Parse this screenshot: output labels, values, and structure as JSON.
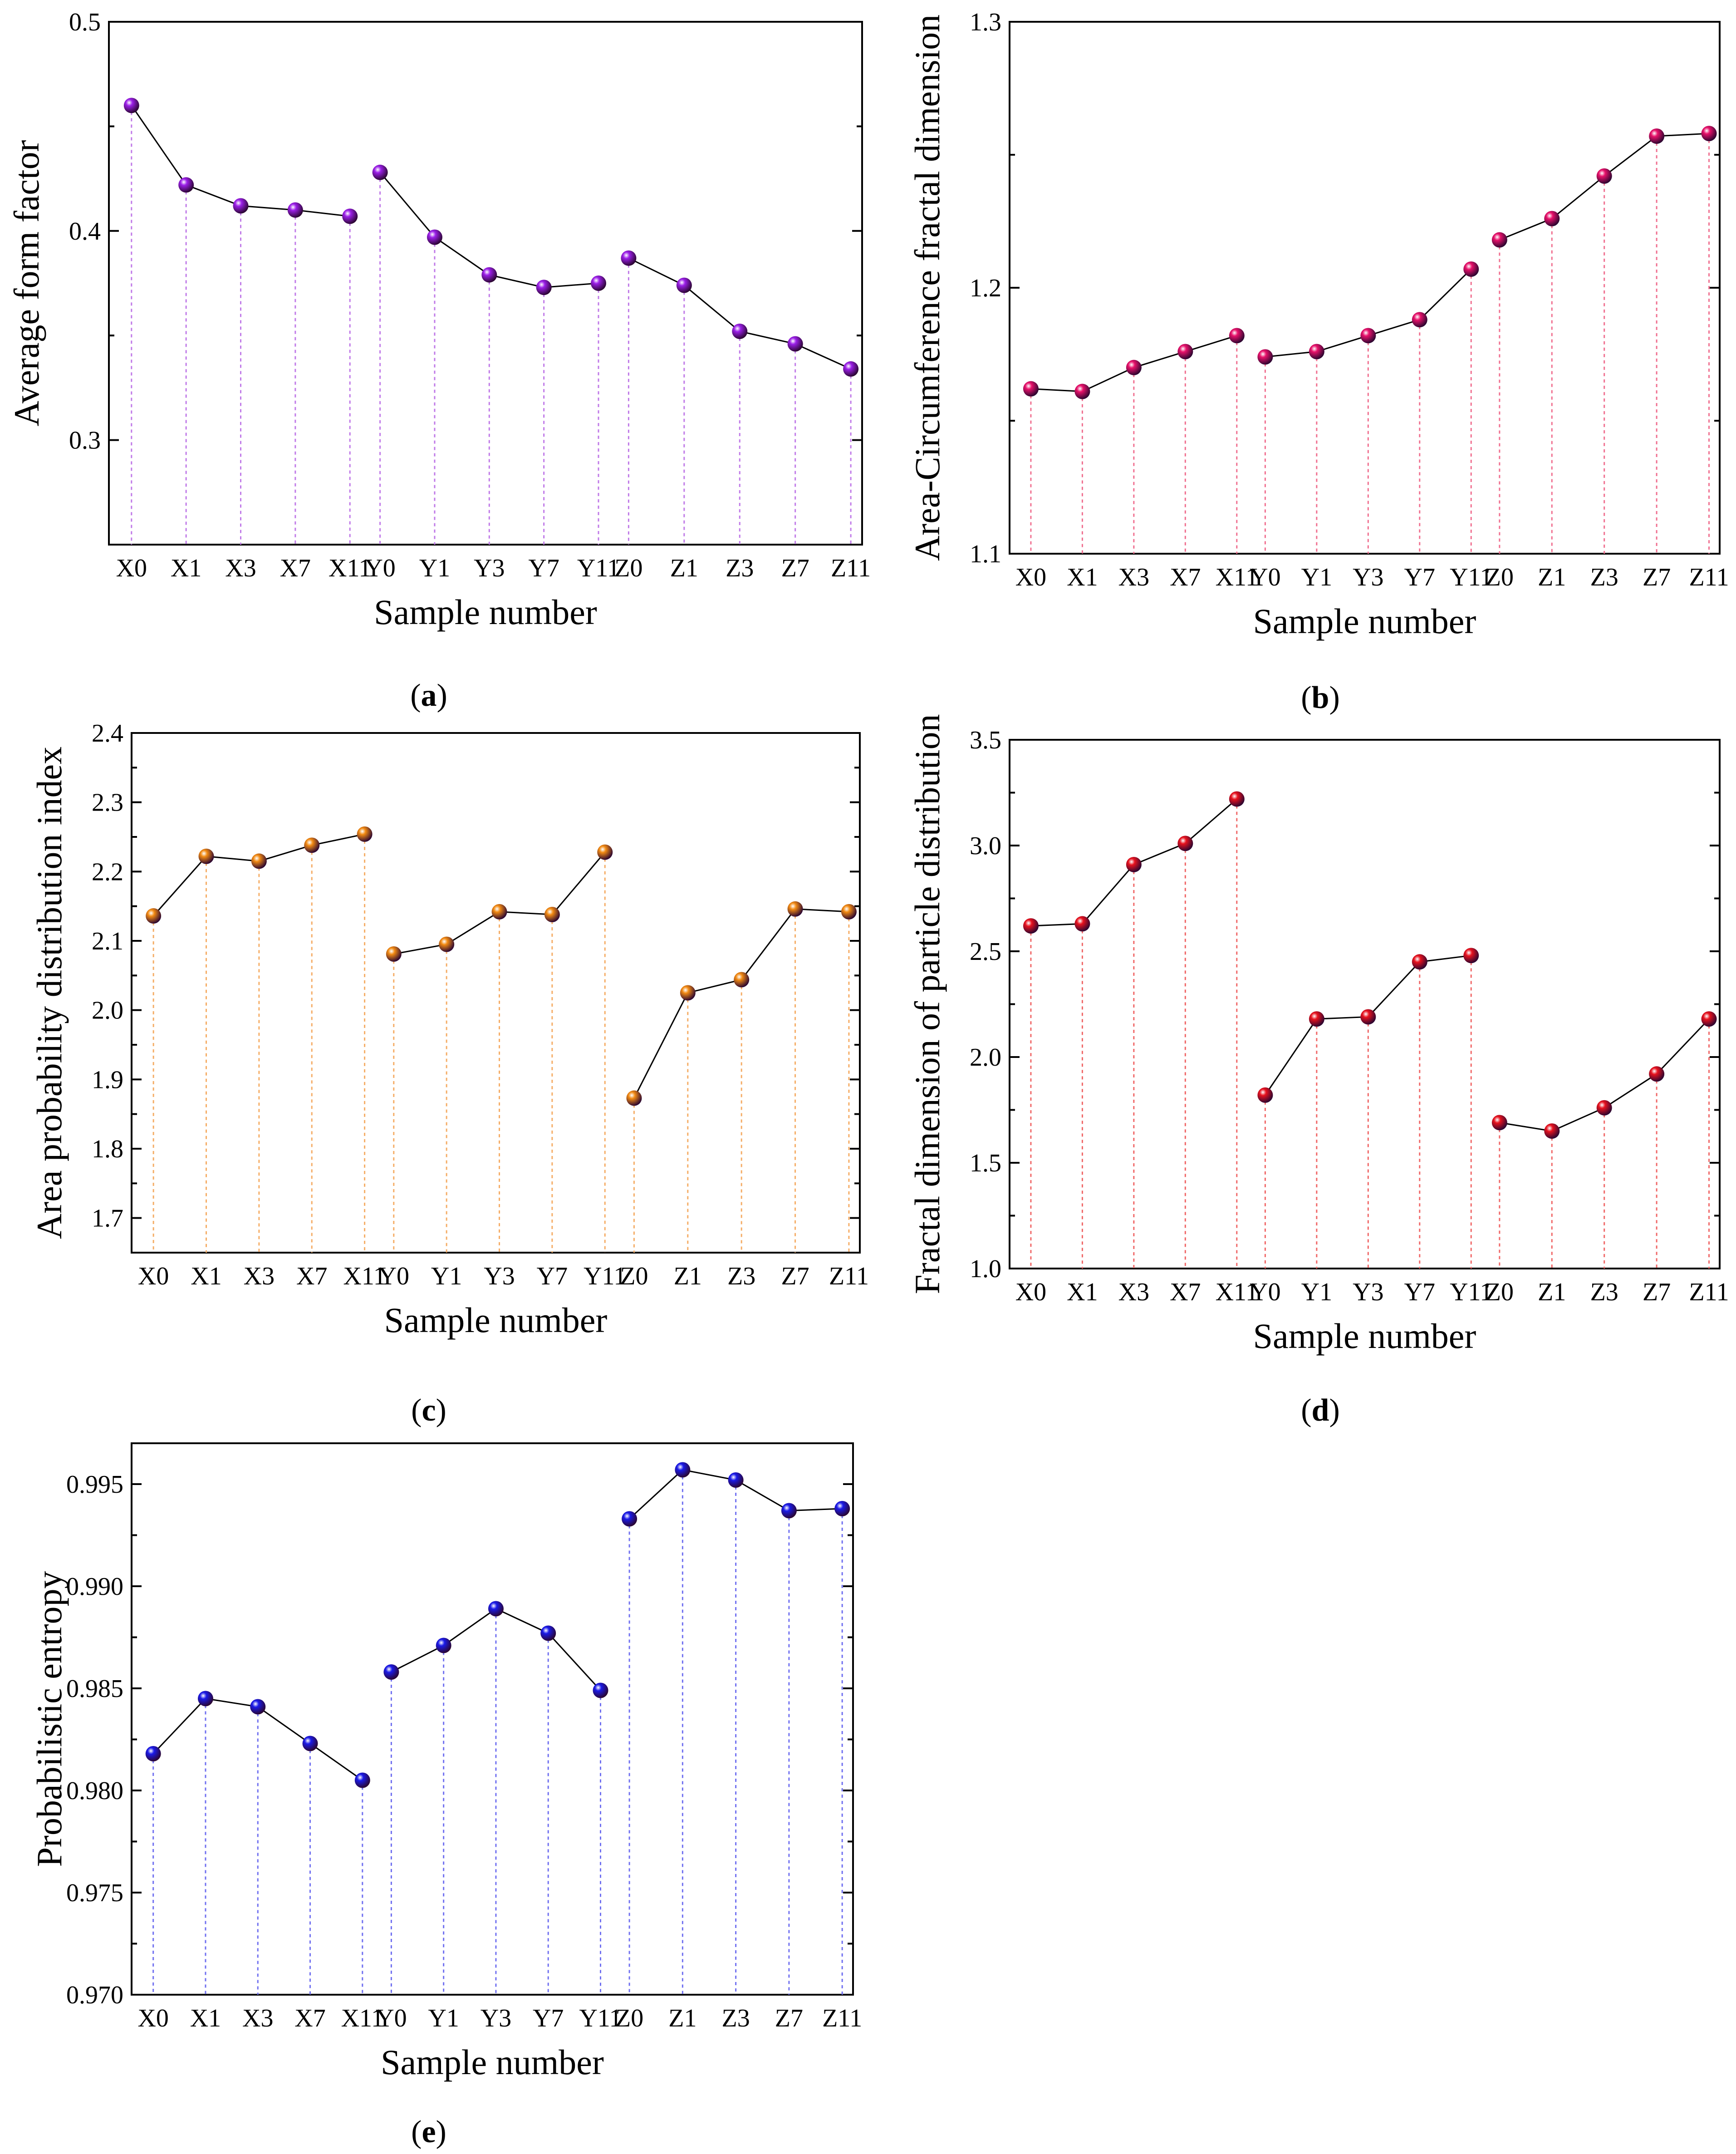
{
  "chart_data": [
    {
      "panel": "a",
      "type": "scatter",
      "xlabel": "Sample number",
      "ylabel": "Average form factor",
      "ylim": [
        0.25,
        0.5
      ],
      "yticks": [
        "0.3",
        "0.4",
        "0.5"
      ],
      "categories": [
        "X0",
        "X1",
        "X3",
        "X7",
        "X11",
        "Y0",
        "Y1",
        "Y3",
        "Y7",
        "Y11",
        "Z0",
        "Z1",
        "Z3",
        "Z7",
        "Z11"
      ],
      "groups": [
        [
          0,
          4
        ],
        [
          5,
          9
        ],
        [
          10,
          14
        ]
      ],
      "values": [
        0.46,
        0.422,
        0.412,
        0.41,
        0.407,
        0.428,
        0.397,
        0.379,
        0.373,
        0.375,
        0.387,
        0.374,
        0.352,
        0.346,
        0.334
      ],
      "color": "#9b1fe8",
      "drop_color": "#c07ae8"
    },
    {
      "panel": "b",
      "type": "scatter",
      "xlabel": "Sample number",
      "ylabel": "Area-Circumference fractal dimension",
      "ylim": [
        1.1,
        1.3
      ],
      "yticks": [
        "1.1",
        "1.2",
        "1.3"
      ],
      "categories": [
        "X0",
        "X1",
        "X3",
        "X7",
        "X11",
        "Y0",
        "Y1",
        "Y3",
        "Y7",
        "Y11",
        "Z0",
        "Z1",
        "Z3",
        "Z7",
        "Z11"
      ],
      "groups": [
        [
          0,
          4
        ],
        [
          5,
          9
        ],
        [
          10,
          14
        ]
      ],
      "values": [
        1.162,
        1.161,
        1.17,
        1.176,
        1.182,
        1.174,
        1.176,
        1.182,
        1.188,
        1.207,
        1.218,
        1.226,
        1.242,
        1.257,
        1.258
      ],
      "color": "#e8116a",
      "drop_color": "#f07090"
    },
    {
      "panel": "c",
      "type": "scatter",
      "xlabel": "Sample number",
      "ylabel": "Area probability distribution index",
      "ylim": [
        1.65,
        2.4
      ],
      "yticks": [
        "1.7",
        "1.8",
        "1.9",
        "2.0",
        "2.1",
        "2.2",
        "2.3",
        "2.4"
      ],
      "categories": [
        "X0",
        "X1",
        "X3",
        "X7",
        "X11",
        "Y0",
        "Y1",
        "Y3",
        "Y7",
        "Y11",
        "Z0",
        "Z1",
        "Z3",
        "Z7",
        "Z11"
      ],
      "groups": [
        [
          0,
          4
        ],
        [
          5,
          9
        ],
        [
          10,
          14
        ]
      ],
      "values": [
        2.136,
        2.222,
        2.215,
        2.238,
        2.254,
        2.081,
        2.095,
        2.142,
        2.138,
        2.228,
        1.873,
        2.025,
        2.044,
        2.146,
        2.142
      ],
      "color": "#f28a12",
      "drop_color": "#f5ad66"
    },
    {
      "panel": "d",
      "type": "scatter",
      "xlabel": "Sample number",
      "ylabel": "Fractal dimension of particle distribution",
      "ylim": [
        1.0,
        3.5
      ],
      "yticks": [
        "1.0",
        "1.5",
        "2.0",
        "2.5",
        "3.0",
        "3.5"
      ],
      "categories": [
        "X0",
        "X1",
        "X3",
        "X7",
        "X11",
        "Y0",
        "Y1",
        "Y3",
        "Y7",
        "Y11",
        "Z0",
        "Z1",
        "Z3",
        "Z7",
        "Z11"
      ],
      "groups": [
        [
          0,
          4
        ],
        [
          5,
          9
        ],
        [
          10,
          14
        ]
      ],
      "values": [
        2.62,
        2.63,
        2.91,
        3.01,
        3.22,
        1.82,
        2.18,
        2.19,
        2.45,
        2.48,
        1.69,
        1.65,
        1.76,
        1.92,
        2.18
      ],
      "color": "#e8121e",
      "drop_color": "#f06868"
    },
    {
      "panel": "e",
      "type": "scatter",
      "xlabel": "Sample number",
      "ylabel": "Probabilistic entropy",
      "ylim": [
        0.97,
        0.997
      ],
      "yticks": [
        "0.970",
        "0.975",
        "0.980",
        "0.985",
        "0.990",
        "0.995"
      ],
      "categories": [
        "X0",
        "X1",
        "X3",
        "X7",
        "X11",
        "Y0",
        "Y1",
        "Y3",
        "Y7",
        "Y11",
        "Z0",
        "Z1",
        "Z3",
        "Z7",
        "Z11"
      ],
      "groups": [
        [
          0,
          4
        ],
        [
          5,
          9
        ],
        [
          10,
          14
        ]
      ],
      "values": [
        0.9818,
        0.9845,
        0.9841,
        0.9823,
        0.9805,
        0.9858,
        0.9871,
        0.9889,
        0.9877,
        0.9849,
        0.9933,
        0.9957,
        0.9952,
        0.9937,
        0.9938
      ],
      "color": "#1a1ae8",
      "drop_color": "#7070f0"
    }
  ],
  "panel_labels": [
    "(a)",
    "(b)",
    "(c)",
    "(d)",
    "(e)"
  ]
}
